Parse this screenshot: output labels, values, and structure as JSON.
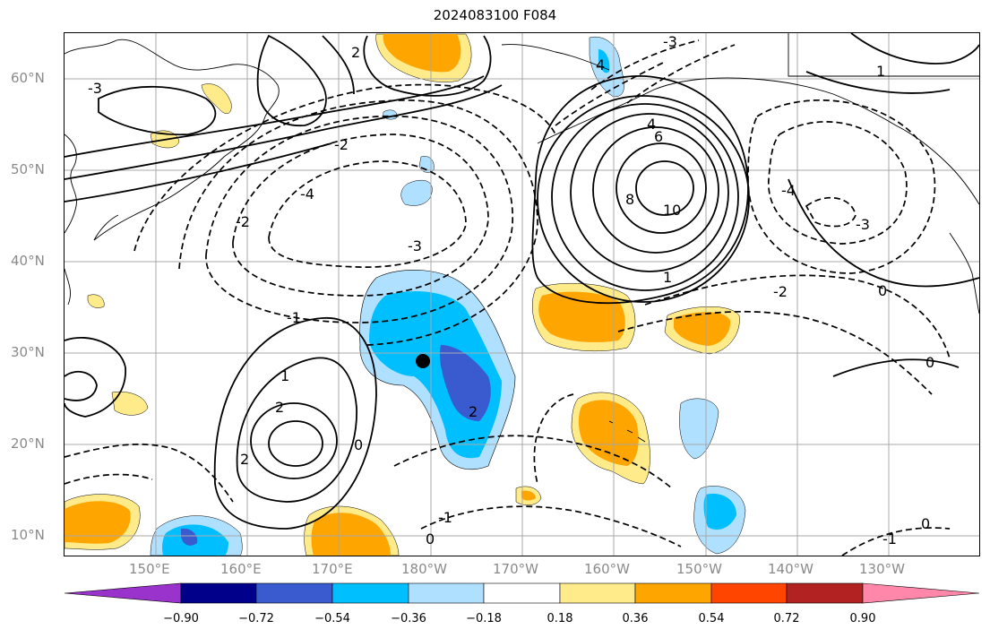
{
  "title": "2024083100 F084",
  "lat_labels": [
    "60°N",
    "50°N",
    "40°N",
    "30°N",
    "20°N",
    "10°N"
  ],
  "lon_labels": [
    "150°E",
    "160°E",
    "170°E",
    "180°W",
    "170°W",
    "160°W",
    "150°W",
    "140°W",
    "130°W"
  ],
  "contour_labels": [
    "-3",
    "-3",
    "-3",
    "-3",
    "-4",
    "-4",
    "-2",
    "-2",
    "-2",
    "-1",
    "-1",
    "-1",
    "0",
    "0",
    "0",
    "0",
    "0",
    "1",
    "1",
    "1",
    "2",
    "2",
    "2",
    "2",
    "4",
    "4",
    "6",
    "8",
    "10"
  ],
  "colorbar": {
    "ticks": [
      "−0.90",
      "−0.72",
      "−0.54",
      "−0.36",
      "−0.18",
      "0.18",
      "0.36",
      "0.54",
      "0.72",
      "0.90"
    ],
    "colors": [
      "#9933cc",
      "#00008b",
      "#3a5bd0",
      "#00bfff",
      "#b0e0ff",
      "#ffffff",
      "#ffeb8a",
      "#ffa500",
      "#ff4500",
      "#b22222",
      "#ff88aa"
    ]
  },
  "marker": {
    "lon": -180.5,
    "lat": 29
  }
}
